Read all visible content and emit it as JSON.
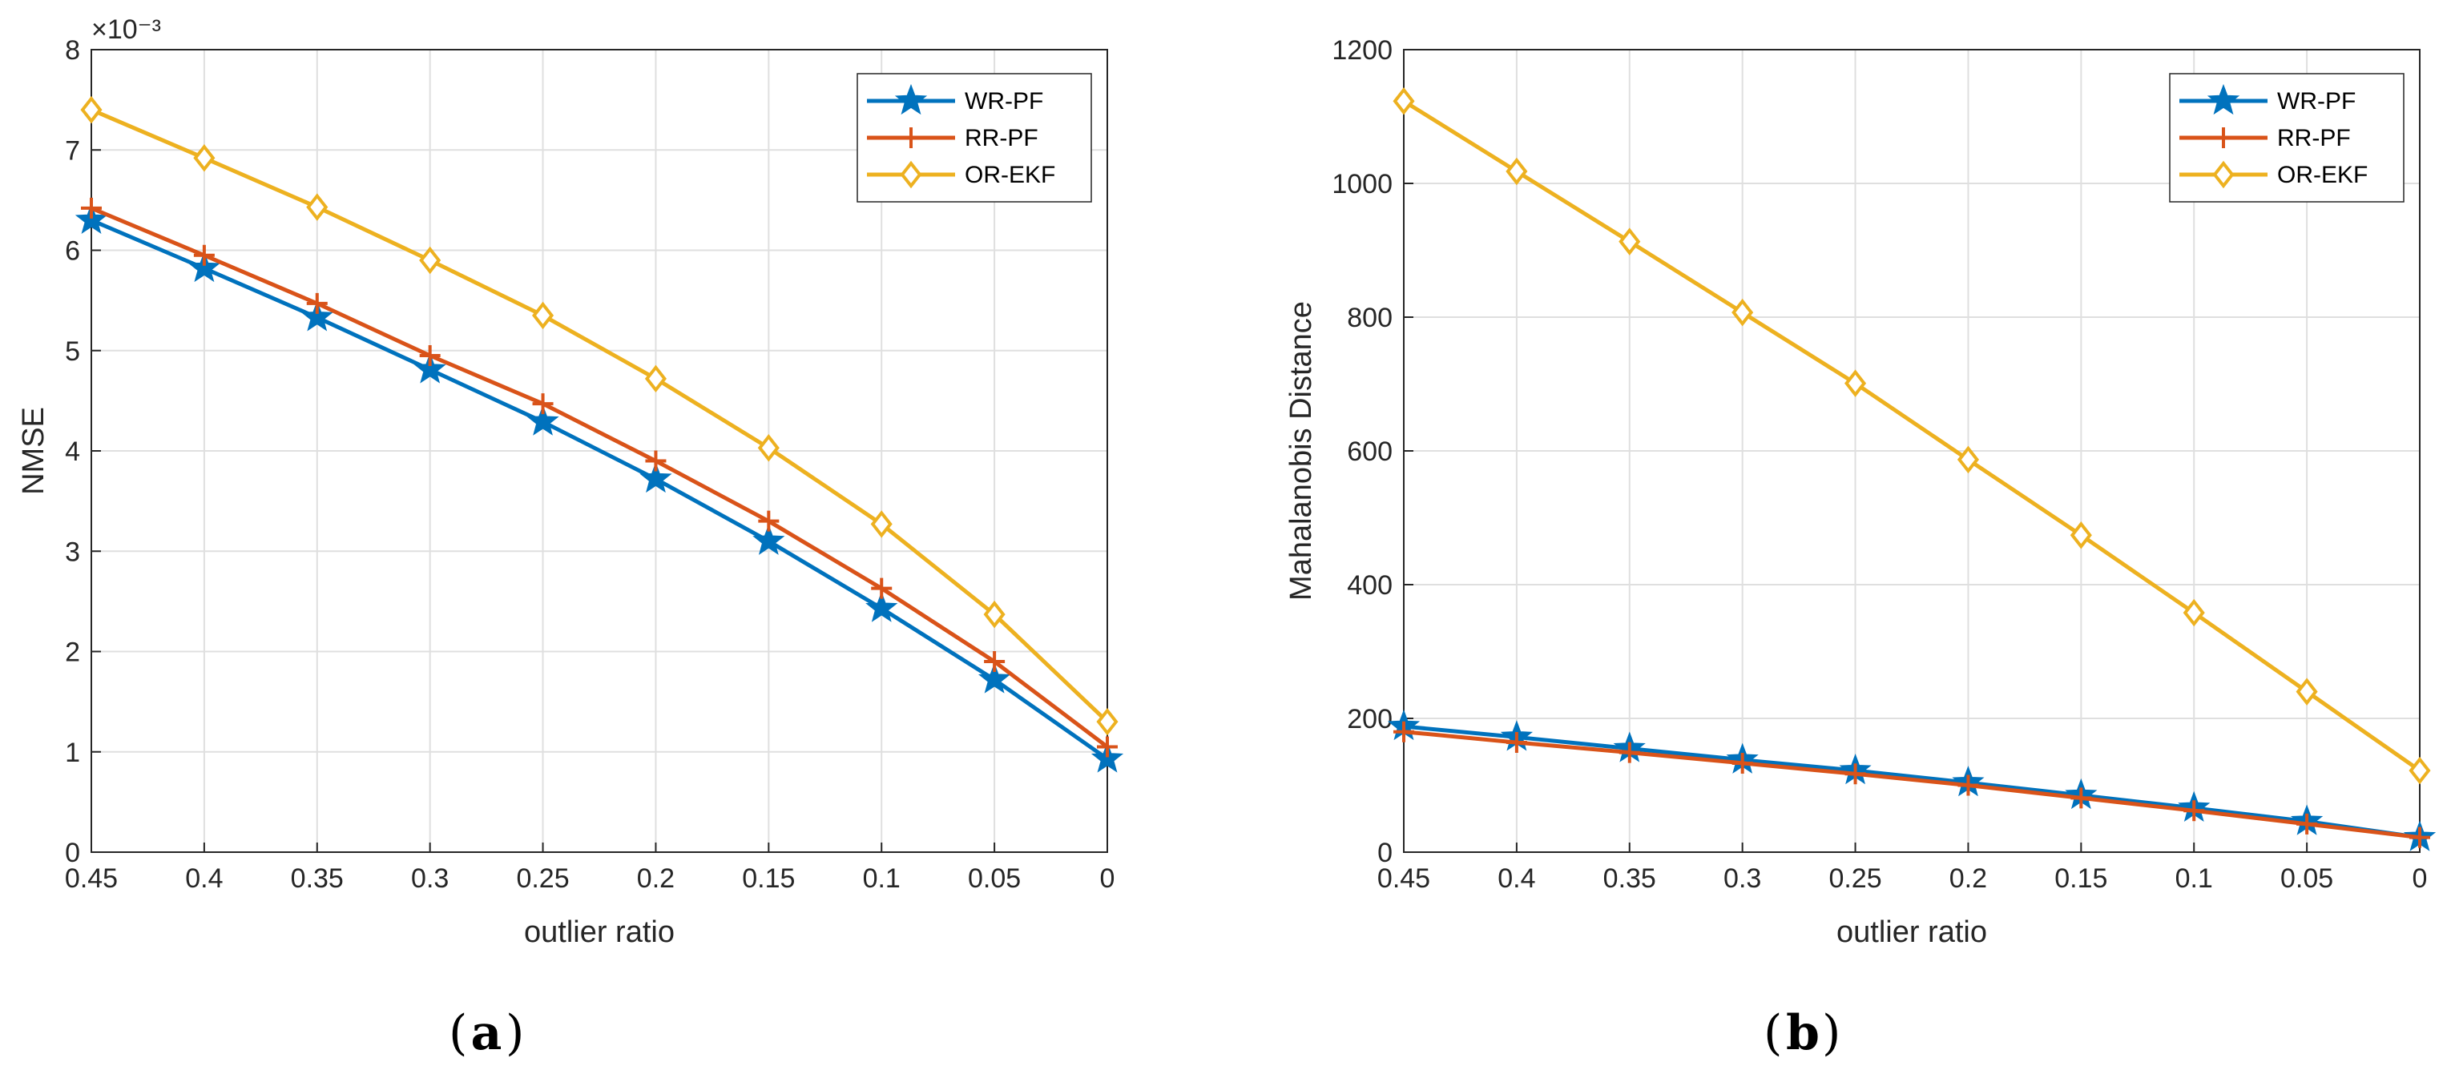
{
  "colors": {
    "wr_pf": "#0072BD",
    "rr_pf": "#D95319",
    "or_ekf": "#EDB120"
  },
  "chart_data": [
    {
      "type": "line",
      "panel": "a",
      "panel_label": "a",
      "title": "",
      "xlabel": "outlier ratio",
      "ylabel": "NMSE",
      "y_multiplier_label": "×10⁻³",
      "categories": [
        "0.45",
        "0.4",
        "0.35",
        "0.3",
        "0.25",
        "0.2",
        "0.15",
        "0.1",
        "0.05",
        "0"
      ],
      "ylim": [
        0,
        8
      ],
      "yticks": [
        0,
        1,
        2,
        3,
        4,
        5,
        6,
        7,
        8
      ],
      "ytick_labels": [
        "0",
        "1",
        "2",
        "3",
        "4",
        "5",
        "6",
        "7",
        "8"
      ],
      "grid": true,
      "legend_position": "top-right",
      "series": [
        {
          "name": "WR-PF",
          "marker": "star",
          "color_key": "wr_pf",
          "values": [
            6.3,
            5.82,
            5.33,
            4.81,
            4.29,
            3.72,
            3.1,
            2.43,
            1.72,
            0.93
          ]
        },
        {
          "name": "RR-PF",
          "marker": "plus",
          "color_key": "rr_pf",
          "values": [
            6.42,
            5.95,
            5.47,
            4.95,
            4.47,
            3.9,
            3.3,
            2.63,
            1.9,
            1.05
          ]
        },
        {
          "name": "OR-EKF",
          "marker": "diamond",
          "color_key": "or_ekf",
          "values": [
            7.4,
            6.92,
            6.43,
            5.9,
            5.35,
            4.72,
            4.03,
            3.27,
            2.37,
            1.3
          ]
        }
      ]
    },
    {
      "type": "line",
      "panel": "b",
      "panel_label": "b",
      "title": "",
      "xlabel": "outlier ratio",
      "ylabel": "Mahalanobis Distance",
      "y_multiplier_label": "",
      "categories": [
        "0.45",
        "0.4",
        "0.35",
        "0.3",
        "0.25",
        "0.2",
        "0.15",
        "0.1",
        "0.05",
        "0"
      ],
      "ylim": [
        0,
        1200
      ],
      "yticks": [
        0,
        200,
        400,
        600,
        800,
        1000,
        1200
      ],
      "ytick_labels": [
        "0",
        "200",
        "400",
        "600",
        "800",
        "1000",
        "1200"
      ],
      "grid": true,
      "legend_position": "top-right",
      "series": [
        {
          "name": "WR-PF",
          "marker": "star",
          "color_key": "wr_pf",
          "values": [
            188,
            172,
            155,
            138,
            122,
            104,
            85,
            66,
            46,
            22
          ]
        },
        {
          "name": "RR-PF",
          "marker": "plus",
          "color_key": "rr_pf",
          "values": [
            180,
            164,
            149,
            133,
            117,
            100,
            81,
            62,
            42,
            22
          ]
        },
        {
          "name": "OR-EKF",
          "marker": "diamond",
          "color_key": "or_ekf",
          "values": [
            1123,
            1018,
            913,
            807,
            701,
            587,
            474,
            358,
            240,
            122
          ]
        }
      ]
    }
  ]
}
